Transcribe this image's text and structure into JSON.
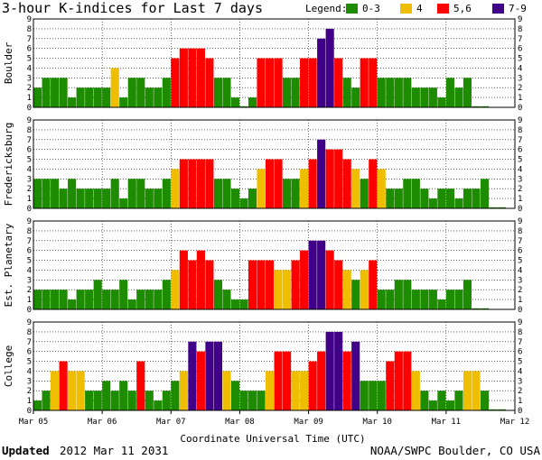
{
  "title": "3-hour K-indices for Last 7 days",
  "legend": {
    "label": "Legend:",
    "items": [
      {
        "label": "0-3",
        "color": "#1e8c00"
      },
      {
        "label": "4",
        "color": "#f0be00"
      },
      {
        "label": "5,6",
        "color": "#ff0000"
      },
      {
        "label": "7-9",
        "color": "#400088"
      }
    ]
  },
  "xlabel": "Coordinate Universal Time (UTC)",
  "footer": {
    "updated_label": "Updated",
    "updated_value": "2012 Mar 11 2031",
    "credit": "NOAA/SWPC Boulder, CO USA"
  },
  "chart_data": {
    "type": "bar",
    "ylim": [
      0,
      9
    ],
    "yticks": [
      "0",
      "1",
      "2",
      "3",
      "4",
      "5",
      "6",
      "7",
      "8",
      "9"
    ],
    "x_ticks": [
      "Mar 05",
      "Mar 06",
      "Mar 07",
      "Mar 08",
      "Mar 09",
      "Mar 10",
      "Mar 11",
      "Mar 12"
    ],
    "interval_hours": 3,
    "grid": true,
    "series": [
      {
        "name": "Boulder",
        "values": [
          2,
          3,
          3,
          3,
          1,
          2,
          2,
          2,
          2,
          4,
          1,
          3,
          3,
          2,
          2,
          3,
          5,
          6,
          6,
          6,
          5,
          3,
          3,
          1,
          0,
          1,
          5,
          5,
          5,
          3,
          3,
          5,
          5,
          7,
          8,
          5,
          3,
          2,
          5,
          5,
          3,
          3,
          3,
          3,
          2,
          2,
          2,
          1,
          3,
          2,
          3,
          0,
          0
        ]
      },
      {
        "name": "Fredericksburg",
        "values": [
          3,
          3,
          3,
          2,
          3,
          2,
          2,
          2,
          2,
          3,
          1,
          3,
          3,
          2,
          2,
          3,
          4,
          5,
          5,
          5,
          5,
          3,
          3,
          2,
          1,
          2,
          4,
          5,
          5,
          3,
          3,
          4,
          5,
          7,
          6,
          6,
          5,
          4,
          3,
          5,
          4,
          2,
          2,
          3,
          3,
          2,
          1,
          2,
          2,
          1,
          2,
          2,
          3,
          0,
          0
        ]
      },
      {
        "name": "Est. Planetary",
        "values": [
          2,
          2,
          2,
          2,
          1,
          2,
          2,
          3,
          2,
          2,
          3,
          1,
          2,
          2,
          2,
          3,
          4,
          6,
          5,
          6,
          5,
          3,
          2,
          1,
          1,
          5,
          5,
          5,
          4,
          4,
          5,
          6,
          7,
          7,
          6,
          5,
          4,
          3,
          4,
          5,
          2,
          2,
          3,
          3,
          2,
          2,
          2,
          1,
          2,
          2,
          3,
          0,
          0
        ]
      },
      {
        "name": "College",
        "values": [
          1,
          2,
          4,
          5,
          4,
          4,
          2,
          2,
          3,
          2,
          3,
          2,
          5,
          2,
          1,
          2,
          3,
          4,
          7,
          6,
          7,
          7,
          4,
          3,
          2,
          2,
          2,
          4,
          6,
          6,
          4,
          4,
          5,
          6,
          8,
          8,
          6,
          7,
          3,
          3,
          3,
          5,
          6,
          6,
          4,
          2,
          1,
          2,
          1,
          2,
          4,
          4,
          2,
          0,
          0
        ]
      }
    ]
  }
}
